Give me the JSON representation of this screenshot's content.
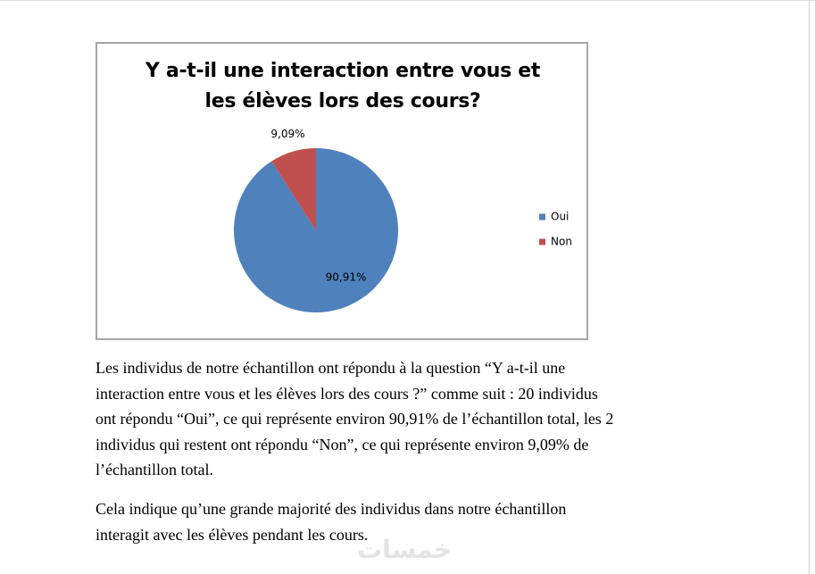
{
  "chart_data": {
    "type": "pie",
    "title": "Y a-t-il une interaction entre vous et les élèves lors des cours?",
    "categories": [
      "Oui",
      "Non"
    ],
    "values": [
      90.91,
      9.09
    ],
    "value_labels": [
      "90,91%",
      "9,09%"
    ],
    "colors": [
      "#4f81bd",
      "#c0504d"
    ],
    "legend": "right"
  },
  "paragraphs": [
    [
      "Les individus de notre échantillon ont répondu à la question “Y a-t-il une",
      "interaction entre vous et les élèves lors des cours ?” comme suit : 20 individus",
      "ont répondu “Oui”, ce qui représente environ 90,91% de l’échantillon total, les 2",
      "individus qui restent ont répondu “Non”, ce qui représente environ 9,09% de",
      "l’échantillon total."
    ],
    [
      "Cela indique qu’une grande majorité des individus dans notre échantillon",
      "interagit avec les élèves pendant les cours."
    ]
  ],
  "watermark": "خمسات"
}
